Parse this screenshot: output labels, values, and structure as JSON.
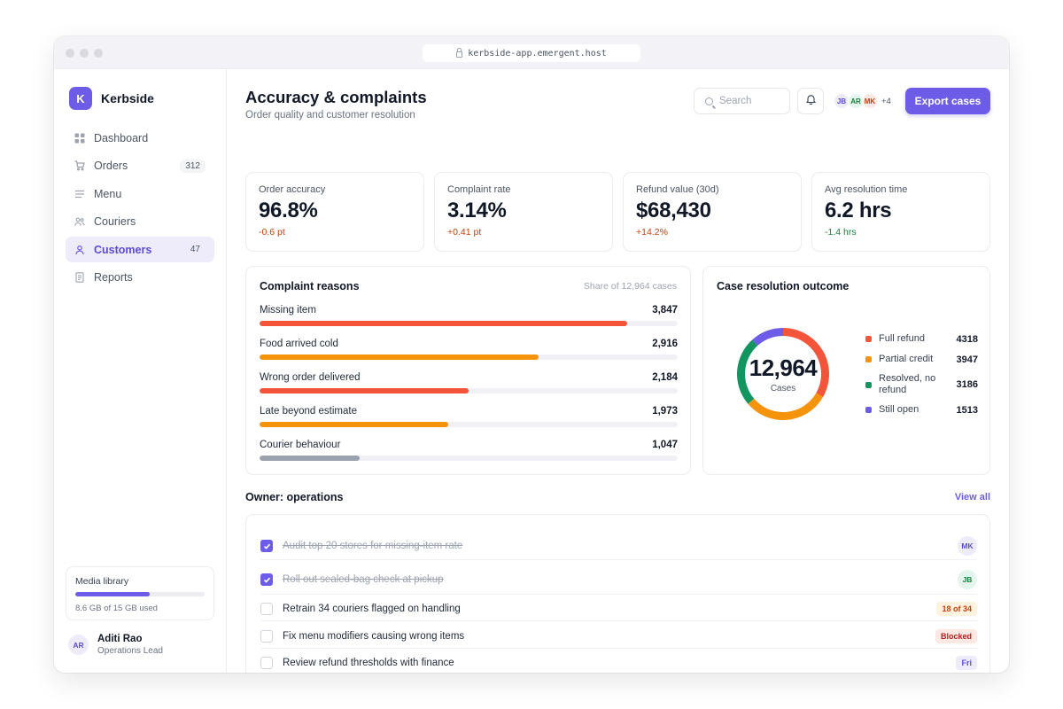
{
  "browser": {
    "url": "kerbside-app.emergent.host"
  },
  "brand": {
    "initial": "K",
    "name": "Kerbside"
  },
  "sidebar": {
    "items": [
      {
        "label": "Dashboard",
        "icon": "grid-icon",
        "badge": ""
      },
      {
        "label": "Orders",
        "icon": "cart-icon",
        "badge": "312"
      },
      {
        "label": "Menu",
        "icon": "menu-lines-icon",
        "badge": ""
      },
      {
        "label": "Couriers",
        "icon": "people-icon",
        "badge": ""
      },
      {
        "label": "Customers",
        "icon": "person-icon",
        "badge": "47",
        "active": true
      },
      {
        "label": "Reports",
        "icon": "document-icon",
        "badge": ""
      }
    ],
    "media": {
      "title": "Media library",
      "usage": "8.6 GB of 15 GB used",
      "fraction": 0.573
    },
    "user": {
      "initials": "AR",
      "name": "Aditi Rao",
      "role": "Operations Lead"
    }
  },
  "header": {
    "title": "Accuracy & complaints",
    "subtitle": "Order quality and customer resolution",
    "search_placeholder": "Search",
    "avatars": [
      {
        "initials": "JB",
        "bg": "#eeecfb",
        "fg": "#5b4bd6"
      },
      {
        "initials": "AR",
        "bg": "#e3f5ec",
        "fg": "#15803d"
      },
      {
        "initials": "MK",
        "bg": "#fde8e4",
        "fg": "#c2410c"
      }
    ],
    "avatars_more": "+4",
    "export_label": "Export cases"
  },
  "kpis": [
    {
      "label": "Order accuracy",
      "value": "96.8%",
      "delta": "-0.6 pt",
      "delta_color": "#c2410c"
    },
    {
      "label": "Complaint rate",
      "value": "3.14%",
      "delta": "+0.41 pt",
      "delta_color": "#c2410c"
    },
    {
      "label": "Refund value (30d)",
      "value": "$68,430",
      "delta": "+14.2%",
      "delta_color": "#c2410c"
    },
    {
      "label": "Avg resolution time",
      "value": "6.2 hrs",
      "delta": "-1.4 hrs",
      "delta_color": "#15803d"
    }
  ],
  "complaints": {
    "title": "Complaint reasons",
    "meta": "Share of 12,964 cases",
    "max": 3847,
    "scale_fraction": 0.88,
    "reasons": [
      {
        "label": "Missing item",
        "value": 3847,
        "display": "3,847",
        "color": "#f4543a"
      },
      {
        "label": "Food arrived cold",
        "value": 2916,
        "display": "2,916",
        "color": "#f5930b"
      },
      {
        "label": "Wrong order delivered",
        "value": 2184,
        "display": "2,184",
        "color": "#f4543a"
      },
      {
        "label": "Late beyond estimate",
        "value": 1973,
        "display": "1,973",
        "color": "#f5930b"
      },
      {
        "label": "Courier behaviour",
        "value": 1047,
        "display": "1,047",
        "color": "#9ca3af"
      }
    ]
  },
  "chart_data": {
    "type": "pie",
    "title": "Case resolution outcome",
    "center_value": "12,964",
    "center_label": "Cases",
    "slices": [
      {
        "label": "Full refund",
        "value": 4318,
        "color": "#f4543a"
      },
      {
        "label": "Partial credit",
        "value": 3947,
        "color": "#f5930b"
      },
      {
        "label": "Resolved, no refund",
        "value": 3186,
        "color": "#13955f"
      },
      {
        "label": "Still open",
        "value": 1513,
        "color": "#6d5ce8"
      }
    ]
  },
  "tasks": {
    "title": "Owner: operations",
    "view_all": "View all",
    "items": [
      {
        "text": "Audit top 20 stores for missing-item rate",
        "done": true,
        "tag_type": "avatar",
        "tag": "MK",
        "tag_bg": "#eeecfb",
        "tag_fg": "#5b4bd6"
      },
      {
        "text": "Roll out sealed-bag check at pickup",
        "done": true,
        "tag_type": "avatar",
        "tag": "JB",
        "tag_bg": "#e3f5ec",
        "tag_fg": "#15803d"
      },
      {
        "text": "Retrain 34 couriers flagged on handling",
        "done": false,
        "tag_type": "pill",
        "tag": "18 of 34",
        "tag_bg": "#fff3e0",
        "tag_fg": "#c2410c"
      },
      {
        "text": "Fix menu modifiers causing wrong items",
        "done": false,
        "tag_type": "pill",
        "tag": "Blocked",
        "tag_bg": "#fde8e4",
        "tag_fg": "#b91c1c"
      },
      {
        "text": "Review refund thresholds with finance",
        "done": false,
        "tag_type": "pill",
        "tag": "Fri",
        "tag_bg": "#eeecfb",
        "tag_fg": "#5b4bd6"
      }
    ]
  }
}
